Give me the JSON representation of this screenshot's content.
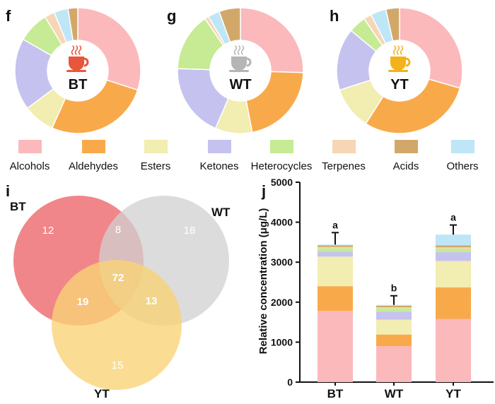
{
  "colors": {
    "Alcohols": "#FBB9BC",
    "Aldehydes": "#F8AA4B",
    "Esters": "#F2EDB0",
    "Ketones": "#C5C2F0",
    "Heterocycles": "#C6EB94",
    "Terpenes": "#F6D6B4",
    "Acids": "#D2A86A",
    "Others": "#BEE6F6",
    "cup_BT": "#E8563B",
    "cup_WT": "#B5B5B5",
    "cup_YT": "#F3B21C",
    "venn_BT": "#F07C80",
    "venn_WT": "#D0D0D0",
    "venn_YT": "#F8D375"
  },
  "panels": {
    "f": "f",
    "g": "g",
    "h": "h",
    "i": "i",
    "j": "j"
  },
  "legend": {
    "items": [
      "Alcohols",
      "Aldehydes",
      "Esters",
      "Ketones",
      "Heterocycles",
      "Terpenes",
      "Acids",
      "Others"
    ]
  },
  "chart_data": [
    {
      "type": "pie",
      "subtype": "donut",
      "panel": "f",
      "center_label": "BT",
      "icon": "tea-cup-icon",
      "categories": [
        "Alcohols",
        "Aldehydes",
        "Esters",
        "Ketones",
        "Heterocycles",
        "Terpenes",
        "Acids",
        "Others"
      ],
      "values": [
        30.0,
        26.7,
        8.1,
        18.5,
        8.0,
        2.6,
        2.5,
        3.6
      ]
    },
    {
      "type": "pie",
      "subtype": "donut",
      "panel": "g",
      "center_label": "WT",
      "icon": "tea-cup-icon",
      "categories": [
        "Alcohols",
        "Aldehydes",
        "Esters",
        "Ketones",
        "Heterocycles",
        "Terpenes",
        "Acids",
        "Others"
      ],
      "values": [
        25.5,
        21.5,
        9.5,
        19.0,
        15.0,
        1.0,
        5.5,
        3.0
      ]
    },
    {
      "type": "pie",
      "subtype": "donut",
      "panel": "h",
      "center_label": "YT",
      "icon": "tea-cup-icon",
      "categories": [
        "Alcohols",
        "Aldehydes",
        "Esters",
        "Ketones",
        "Heterocycles",
        "Terpenes",
        "Acids",
        "Others"
      ],
      "values": [
        29.5,
        29.5,
        11.0,
        16.0,
        4.5,
        2.0,
        3.5,
        4.0
      ]
    },
    {
      "type": "venn",
      "panel": "i",
      "sets": [
        "BT",
        "WT",
        "YT"
      ],
      "regions": {
        "BT_only": 12,
        "WT_only": 18,
        "YT_only": 15,
        "BT_WT": 8,
        "BT_YT": 19,
        "WT_YT": 13,
        "BT_WT_YT": 72
      }
    },
    {
      "type": "bar",
      "subtype": "stacked",
      "panel": "j",
      "ylabel": "Relative concentration (μg/L)",
      "xlabel": "",
      "ylim": [
        0,
        5000
      ],
      "yticks": [
        0,
        1000,
        2000,
        3000,
        4000,
        5000
      ],
      "categories": [
        "BT",
        "WT",
        "YT"
      ],
      "series": [
        {
          "name": "Alcohols",
          "values": [
            1780,
            900,
            1580
          ]
        },
        {
          "name": "Aldehydes",
          "values": [
            620,
            290,
            790
          ]
        },
        {
          "name": "Esters",
          "values": [
            740,
            370,
            660
          ]
        },
        {
          "name": "Ketones",
          "values": [
            120,
            200,
            220
          ]
        },
        {
          "name": "Heterocycles",
          "values": [
            90,
            90,
            90
          ]
        },
        {
          "name": "Terpenes",
          "values": [
            30,
            20,
            30
          ]
        },
        {
          "name": "Acids",
          "values": [
            40,
            40,
            50
          ]
        },
        {
          "name": "Others",
          "values": [
            20,
            20,
            270
          ]
        }
      ],
      "error_bars": [
        300,
        230,
        240
      ],
      "significance": [
        "a",
        "b",
        "a"
      ]
    }
  ]
}
